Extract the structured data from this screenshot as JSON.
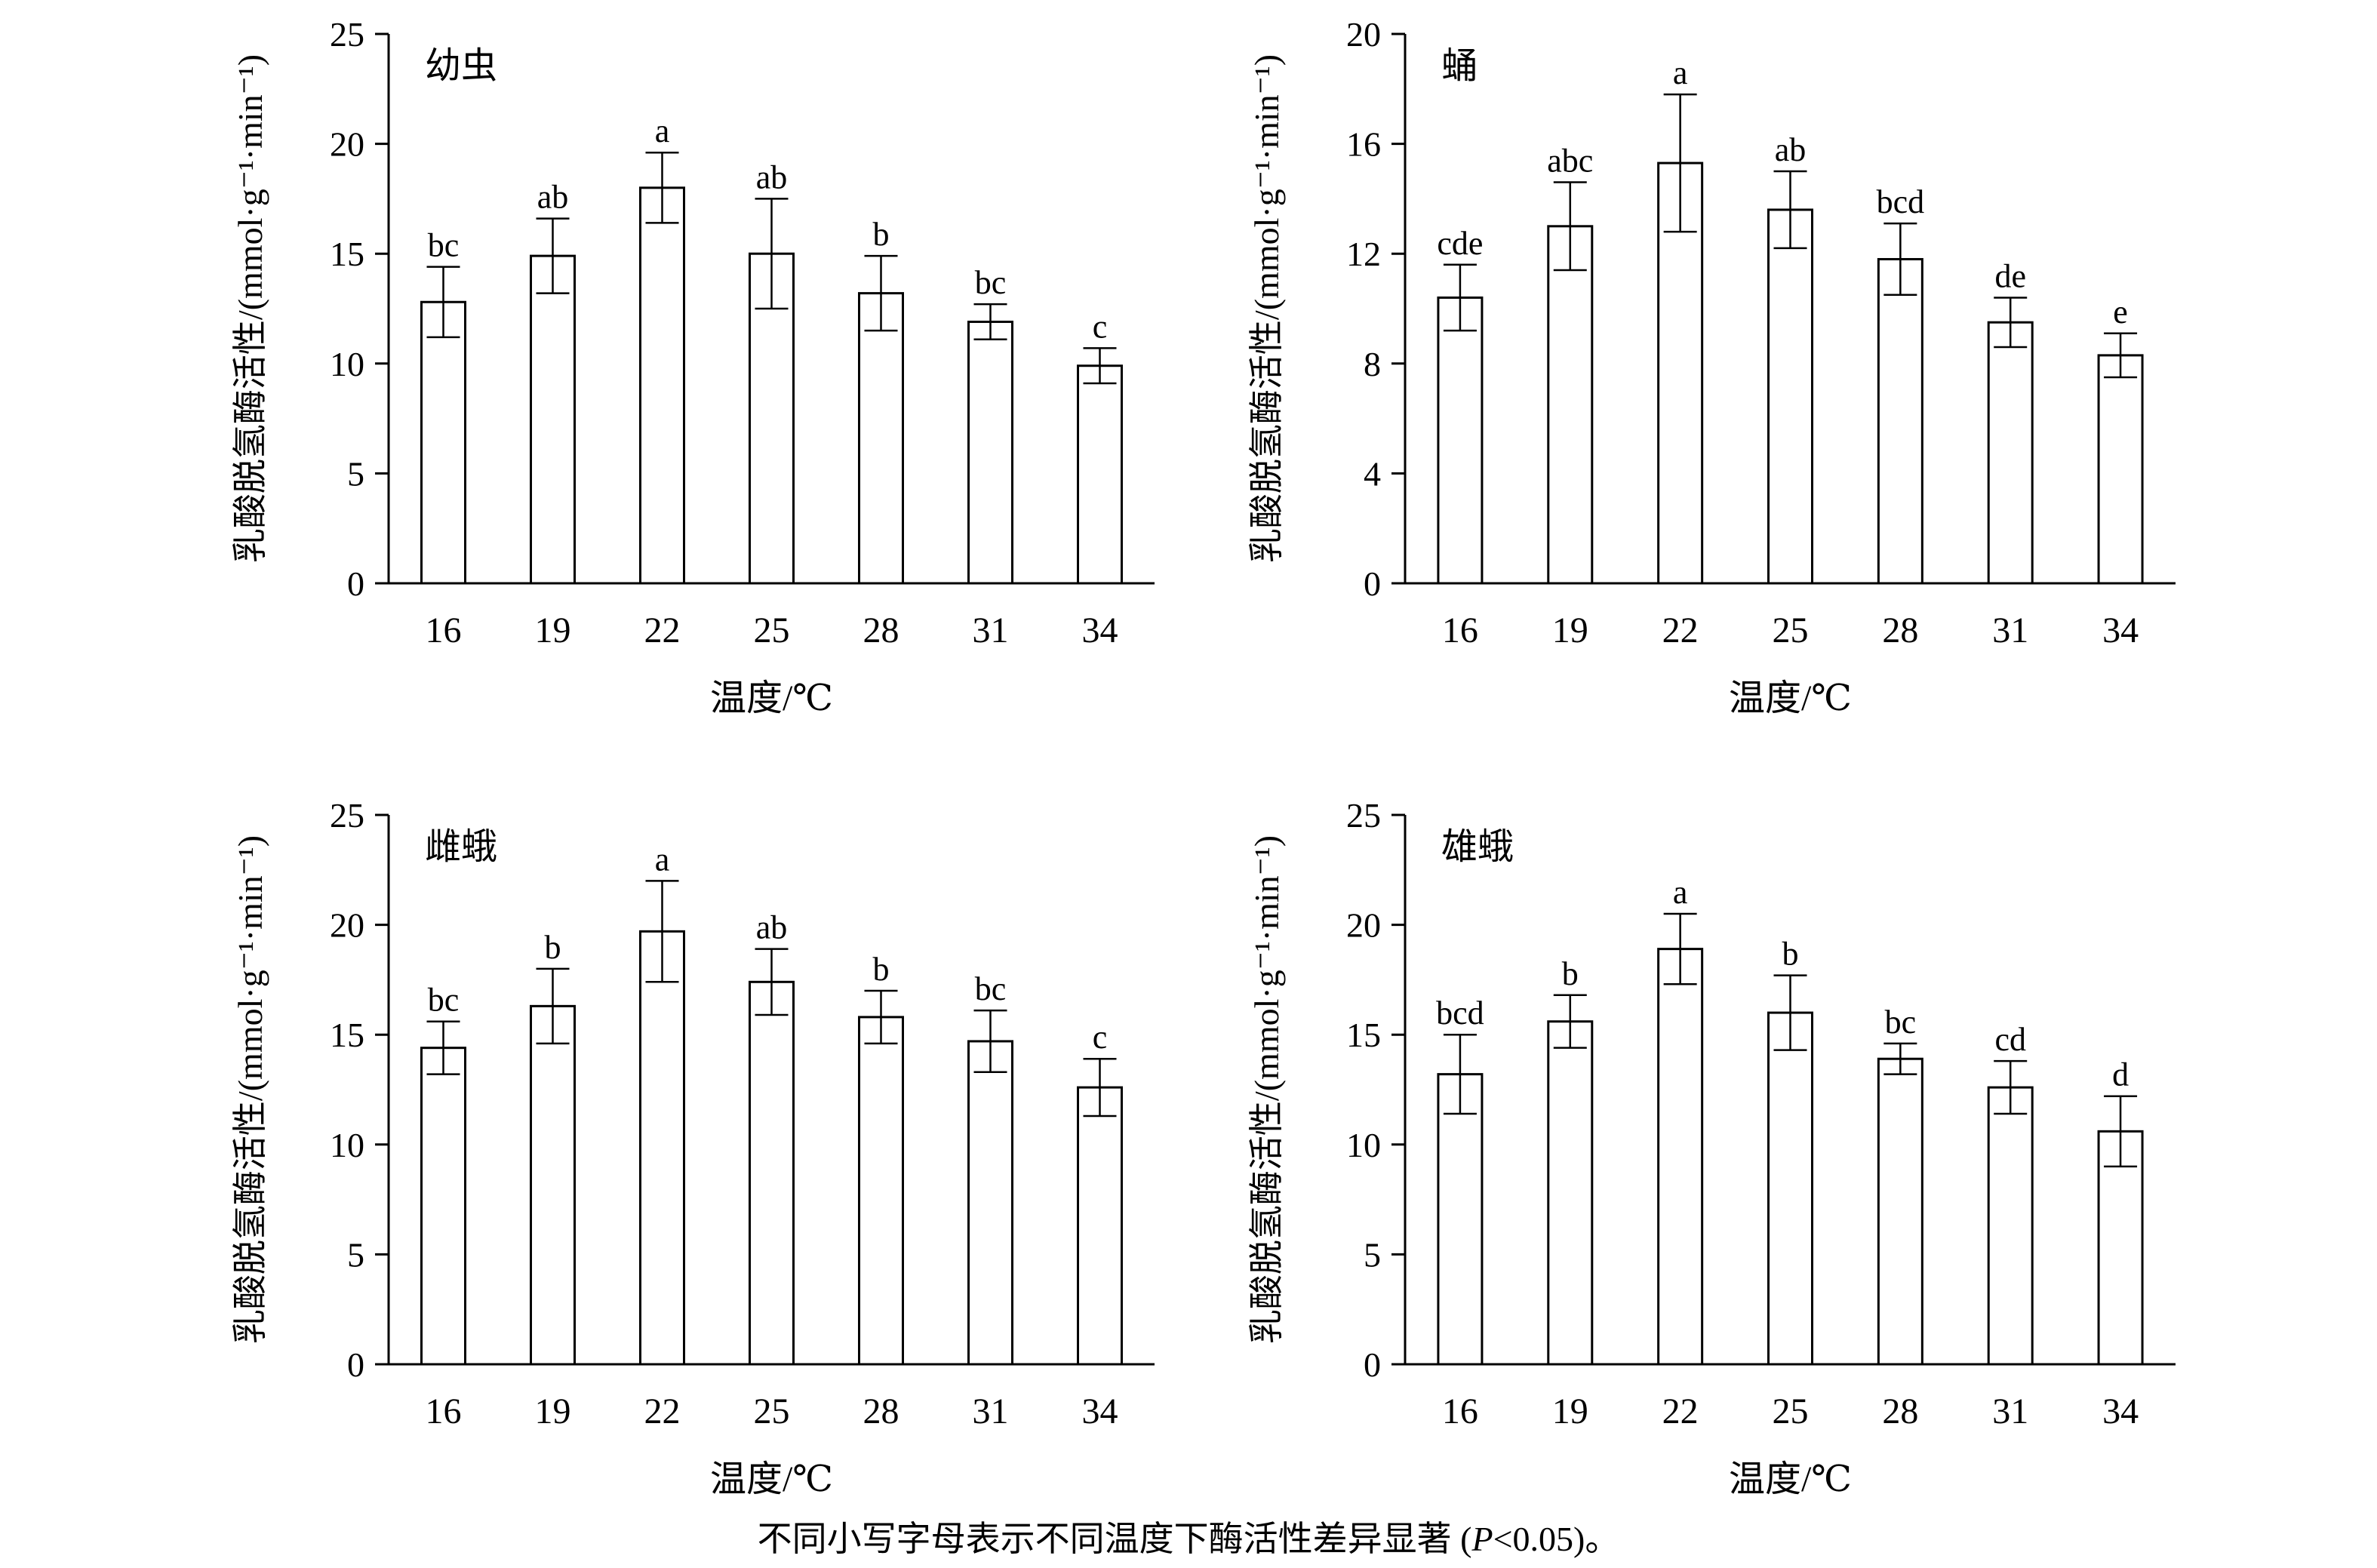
{
  "caption": {
    "before": "不同小写字母表示不同温度下酶活性差异显著 (",
    "italic": "P",
    "after": "<0.05)。"
  },
  "chart_data": [
    {
      "type": "bar",
      "panel_label": "幼虫",
      "xlabel": "温度/℃",
      "ylabel": "乳酸脱氢酶活性/(mmol·g⁻¹·min⁻¹)",
      "categories": [
        "16",
        "19",
        "22",
        "25",
        "28",
        "31",
        "34"
      ],
      "values": [
        12.8,
        14.9,
        18.0,
        15.0,
        13.2,
        11.9,
        9.9
      ],
      "errors": [
        1.6,
        1.7,
        1.6,
        2.5,
        1.7,
        0.8,
        0.8
      ],
      "letters": [
        "bc",
        "ab",
        "a",
        "ab",
        "b",
        "bc",
        "c"
      ],
      "ylim": [
        0,
        25
      ],
      "yticks": [
        "0",
        "5",
        "10",
        "15",
        "20",
        "25"
      ]
    },
    {
      "type": "bar",
      "panel_label": "蛹",
      "xlabel": "温度/℃",
      "ylabel": "乳酸脱氢酶活性/(mmol·g⁻¹·min⁻¹)",
      "categories": [
        "16",
        "19",
        "22",
        "25",
        "28",
        "31",
        "34"
      ],
      "values": [
        10.4,
        13.0,
        15.3,
        13.6,
        11.8,
        9.5,
        8.3
      ],
      "errors": [
        1.2,
        1.6,
        2.5,
        1.4,
        1.3,
        0.9,
        0.8
      ],
      "letters": [
        "cde",
        "abc",
        "a",
        "ab",
        "bcd",
        "de",
        "e"
      ],
      "ylim": [
        0,
        20
      ],
      "yticks": [
        "0",
        "4",
        "8",
        "12",
        "16",
        "20"
      ]
    },
    {
      "type": "bar",
      "panel_label": "雌蛾",
      "xlabel": "温度/℃",
      "ylabel": "乳酸脱氢酶活性/(mmol·g⁻¹·min⁻¹)",
      "categories": [
        "16",
        "19",
        "22",
        "25",
        "28",
        "31",
        "34"
      ],
      "values": [
        14.4,
        16.3,
        19.7,
        17.4,
        15.8,
        14.7,
        12.6
      ],
      "errors": [
        1.2,
        1.7,
        2.3,
        1.5,
        1.2,
        1.4,
        1.3
      ],
      "letters": [
        "bc",
        "b",
        "a",
        "ab",
        "b",
        "bc",
        "c"
      ],
      "ylim": [
        0,
        25
      ],
      "yticks": [
        "0",
        "5",
        "10",
        "15",
        "20",
        "25"
      ]
    },
    {
      "type": "bar",
      "panel_label": "雄蛾",
      "xlabel": "温度/℃",
      "ylabel": "乳酸脱氢酶活性/(mmol·g⁻¹·min⁻¹)",
      "categories": [
        "16",
        "19",
        "22",
        "25",
        "28",
        "31",
        "34"
      ],
      "values": [
        13.2,
        15.6,
        18.9,
        16.0,
        13.9,
        12.6,
        10.6
      ],
      "errors": [
        1.8,
        1.2,
        1.6,
        1.7,
        0.7,
        1.2,
        1.6
      ],
      "letters": [
        "bcd",
        "b",
        "a",
        "b",
        "bc",
        "cd",
        "d"
      ],
      "ylim": [
        0,
        25
      ],
      "yticks": [
        "0",
        "5",
        "10",
        "15",
        "20",
        "25"
      ]
    }
  ]
}
